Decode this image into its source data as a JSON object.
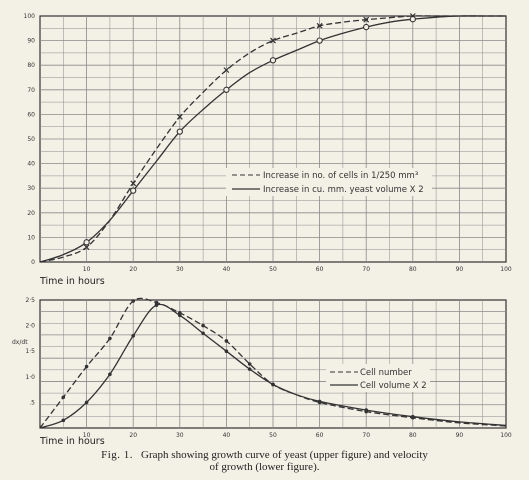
{
  "chart_data": [
    {
      "type": "line",
      "xlabel": "Time in hours",
      "xlim": [
        0,
        100
      ],
      "ylim": [
        0,
        100
      ],
      "x_ticks": [
        "10",
        "20",
        "30",
        "40",
        "50",
        "60",
        "70",
        "80",
        "90",
        "100"
      ],
      "y_ticks": [
        "0",
        "10",
        "20",
        "30",
        "40",
        "50",
        "60",
        "70",
        "80",
        "90",
        "100"
      ],
      "grid": true,
      "legend_position": "center-right",
      "series": [
        {
          "name": "Increase in no. of cells in 1/250 mm³",
          "style": "dashed",
          "marker": "x",
          "x": [
            0,
            5,
            10,
            15,
            20,
            25,
            30,
            35,
            40,
            45,
            50,
            55,
            60,
            65,
            70,
            75,
            80,
            85,
            90,
            95,
            100
          ],
          "y": [
            0,
            2,
            6,
            17,
            32,
            46,
            59,
            69,
            78,
            85,
            90,
            93,
            96,
            97.5,
            98.5,
            99.3,
            100,
            100,
            100,
            100,
            100
          ]
        },
        {
          "name": "Increase in cu. mm. yeast volume X 2",
          "style": "solid",
          "marker": "o",
          "x": [
            0,
            5,
            10,
            15,
            20,
            25,
            30,
            35,
            40,
            45,
            50,
            55,
            60,
            65,
            70,
            75,
            80,
            85,
            90,
            95,
            100
          ],
          "y": [
            0,
            3,
            8,
            17,
            29,
            41,
            53,
            62,
            70,
            77,
            82,
            86,
            90,
            93,
            95.5,
            97.5,
            98.7,
            99.5,
            100,
            100,
            100
          ]
        }
      ]
    },
    {
      "type": "line",
      "xlabel": "Time in hours",
      "ylabel": "dx/dt",
      "xlim": [
        0,
        100
      ],
      "ylim": [
        0,
        2.5
      ],
      "x_ticks": [
        "10",
        "20",
        "30",
        "40",
        "50",
        "60",
        "70",
        "80",
        "90",
        "100"
      ],
      "y_ticks": [
        ".5",
        "1·0",
        "1·5",
        "2·0",
        "2·5"
      ],
      "grid": true,
      "legend_position": "center-right",
      "series": [
        {
          "name": "Cell number",
          "style": "dashed",
          "marker": "dot",
          "x": [
            0,
            5,
            10,
            15,
            20,
            25,
            30,
            35,
            40,
            45,
            50,
            55,
            60,
            70,
            80,
            90,
            100
          ],
          "y": [
            0,
            0.6,
            1.2,
            1.75,
            2.48,
            2.45,
            2.25,
            2.0,
            1.7,
            1.25,
            0.85,
            0.65,
            0.5,
            0.32,
            0.2,
            0.1,
            0.04
          ]
        },
        {
          "name": "Cell volume X 2",
          "style": "solid",
          "marker": "dot",
          "x": [
            0,
            5,
            10,
            15,
            20,
            25,
            30,
            35,
            40,
            45,
            50,
            55,
            60,
            70,
            80,
            90,
            100
          ],
          "y": [
            0,
            0.15,
            0.5,
            1.05,
            1.8,
            2.4,
            2.2,
            1.85,
            1.5,
            1.15,
            0.85,
            0.65,
            0.52,
            0.35,
            0.22,
            0.12,
            0.05
          ]
        }
      ]
    }
  ],
  "caption": {
    "fig_label": "Fig. 1.",
    "line1": "Graph showing growth curve of yeast (upper figure) and velocity",
    "line2": "of growth (lower figure)."
  },
  "colors": {
    "ink": "#333333",
    "grid": "#8a8a8a",
    "paper": "#f3f0e6"
  }
}
